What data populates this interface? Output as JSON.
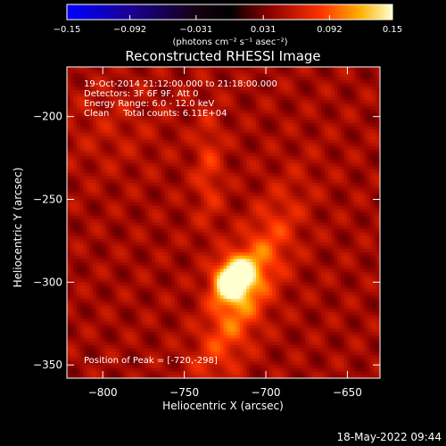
{
  "chart_data": {
    "type": "heatmap",
    "title": "Reconstructed RHESSI Image",
    "xlabel": "Heliocentric X (arcsec)",
    "ylabel": "Heliocentric Y (arcsec)",
    "xlim": [
      -822,
      -630
    ],
    "ylim": [
      -358,
      -170
    ],
    "x_ticks": [
      -800,
      -750,
      -700,
      -650
    ],
    "y_ticks": [
      -200,
      -250,
      -300,
      -350
    ],
    "x_tick_labels": [
      "−800",
      "−750",
      "−700",
      "−650"
    ],
    "y_tick_labels": [
      "−200",
      "−250",
      "−300",
      "−350"
    ],
    "colorbar": {
      "range": [
        -0.15,
        0.15
      ],
      "ticks": [
        -0.15,
        -0.092,
        -0.031,
        0.031,
        0.092,
        0.15
      ],
      "tick_labels": [
        "−0.15",
        "−0.092",
        "−0.031",
        "0.031",
        "0.092",
        "0.15"
      ],
      "unit_label": "(photons cm⁻² s⁻¹ asec⁻²)"
    },
    "annotations": {
      "line1": "19-Oct-2014 21:12:00.000 to 21:18:00.000",
      "line2": "Detectors: 3F 6F 9F, Att 0",
      "line3": "Energy Range: 6.0 - 12.0 keV",
      "line4": "Clean     Total counts: 6.11E+04",
      "peak": "Position of Peak = [-720,-298]"
    },
    "peak": {
      "x": -720,
      "y": -298,
      "value": 0.15
    },
    "sources": [
      {
        "x": -720,
        "y": -298,
        "amplitude": 0.15,
        "sigma_x": 7,
        "sigma_y": 9,
        "rotation_deg": -35
      },
      {
        "x": -712,
        "y": -305,
        "amplitude": 0.06,
        "sigma_x": 11,
        "sigma_y": 40,
        "rotation_deg": -25
      },
      {
        "x": -735,
        "y": -232,
        "amplitude": 0.03,
        "sigma_x": 6,
        "sigma_y": 25,
        "rotation_deg": 0
      },
      {
        "x": -795,
        "y": -205,
        "amplitude": 0.012,
        "sigma_x": 22,
        "sigma_y": 20,
        "rotation_deg": 0
      }
    ]
  },
  "footer": {
    "timestamp": "18-May-2022 09:44"
  }
}
